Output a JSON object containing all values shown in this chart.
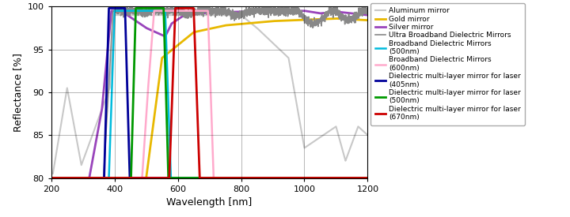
{
  "xlabel": "Wavelength [nm]",
  "ylabel": "Reflectance [%]",
  "xlim": [
    200,
    1200
  ],
  "ylim": [
    80,
    100
  ],
  "yticks": [
    80,
    85,
    90,
    95,
    100
  ],
  "xticks": [
    200,
    400,
    600,
    800,
    1000,
    1200
  ],
  "series": {
    "aluminum": {
      "color": "#c8c8c8",
      "label": "Aluminum mirror",
      "lw": 1.5
    },
    "gold": {
      "color": "#e8b800",
      "label": "Gold mirror",
      "lw": 2.0
    },
    "silver": {
      "color": "#9944bb",
      "label": "Silver mirror",
      "lw": 2.0
    },
    "ultra_broadband": {
      "color": "#888888",
      "label": "Ultra Broadband Dielectric Mirrors",
      "lw": 1.2
    },
    "broadband_500": {
      "color": "#00bbdd",
      "label": "Broadband Dielectric Mirrors\n(500nm)",
      "lw": 1.8
    },
    "broadband_600": {
      "color": "#ffaacc",
      "label": "Broadband Dielectric Mirrors\n(600nm)",
      "lw": 1.8
    },
    "dielectric_405": {
      "color": "#000099",
      "label": "Dielectric multi-layer mirror for laser\n(405nm)",
      "lw": 2.0
    },
    "dielectric_500": {
      "color": "#009900",
      "label": "Dielectric multi-layer mirror for laser\n(500nm)",
      "lw": 2.0
    },
    "dielectric_670": {
      "color": "#cc0000",
      "label": "Dielectric multi-layer mirror for laser\n(670nm)",
      "lw": 2.0
    }
  },
  "background_color": "#ffffff",
  "grid_color": "#000000"
}
